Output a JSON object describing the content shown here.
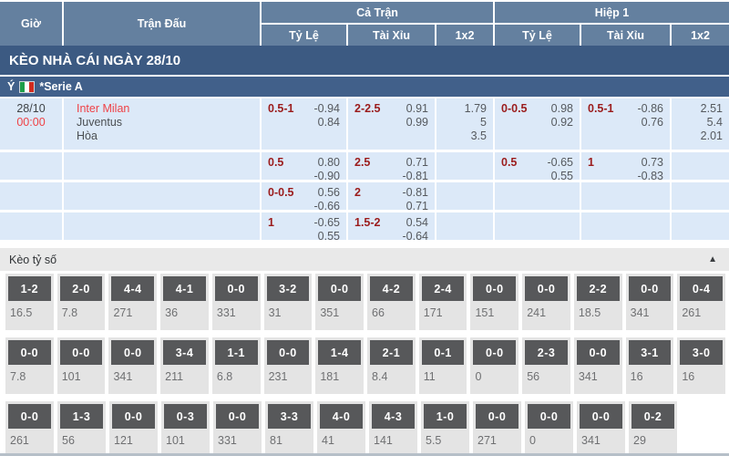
{
  "header": {
    "time": "Giờ",
    "match": "Trận Đấu",
    "full_time": "Cả Trận",
    "first_half": "Hiệp 1",
    "handicap": "Tỷ Lệ",
    "over_under": "Tài Xỉu",
    "one_x_two": "1x2"
  },
  "banner": {
    "title": "KÈO NHÀ CÁI NGÀY 28/10"
  },
  "league": {
    "country": "Ý",
    "flag": "italy-flag",
    "name": "*Serie A"
  },
  "match": {
    "date": "28/10",
    "time": "00:00",
    "home": "Inter Milan",
    "away": "Juventus",
    "draw": "Hòa"
  },
  "odds_rows": [
    {
      "ft_hdp_line": "0.5-1",
      "ft_hdp_top": "-0.94",
      "ft_hdp_bot": "0.84",
      "ft_ou_line": "2-2.5",
      "ft_ou_top": "0.91",
      "ft_ou_bot": "0.99",
      "ft_1": "1.79",
      "ft_x": "5",
      "ft_2": "3.5",
      "h1_hdp_line": "0-0.5",
      "h1_hdp_top": "0.98",
      "h1_hdp_bot": "0.92",
      "h1_ou_line": "0.5-1",
      "h1_ou_top": "-0.86",
      "h1_ou_bot": "0.76",
      "h1_1": "2.51",
      "h1_x": "5.4",
      "h1_2": "2.01"
    },
    {
      "ft_hdp_line": "0.5",
      "ft_hdp_top": "0.80",
      "ft_hdp_bot": "-0.90",
      "ft_ou_line": "2.5",
      "ft_ou_top": "0.71",
      "ft_ou_bot": "-0.81",
      "h1_hdp_line": "0.5",
      "h1_hdp_top": "-0.65",
      "h1_hdp_bot": "0.55",
      "h1_ou_line": "1",
      "h1_ou_top": "0.73",
      "h1_ou_bot": "-0.83"
    },
    {
      "ft_hdp_line": "0-0.5",
      "ft_hdp_top": "0.56",
      "ft_hdp_bot": "-0.66",
      "ft_ou_line": "2",
      "ft_ou_top": "-0.81",
      "ft_ou_bot": "0.71"
    },
    {
      "ft_hdp_line": "1",
      "ft_hdp_top": "-0.65",
      "ft_hdp_bot": "0.55",
      "ft_ou_line": "1.5-2",
      "ft_ou_top": "0.54",
      "ft_ou_bot": "-0.64"
    }
  ],
  "score_section": {
    "title": "Kèo tỷ số",
    "collapse_icon": "▲",
    "rows": [
      [
        {
          "score": "1-2",
          "odds": "16.5"
        },
        {
          "score": "2-0",
          "odds": "7.8"
        },
        {
          "score": "4-4",
          "odds": "271"
        },
        {
          "score": "4-1",
          "odds": "36"
        },
        {
          "score": "0-0",
          "odds": "331"
        },
        {
          "score": "3-2",
          "odds": "31"
        },
        {
          "score": "0-0",
          "odds": "351"
        },
        {
          "score": "4-2",
          "odds": "66"
        },
        {
          "score": "2-4",
          "odds": "171"
        },
        {
          "score": "0-0",
          "odds": "151"
        },
        {
          "score": "0-0",
          "odds": "241"
        },
        {
          "score": "2-2",
          "odds": "18.5"
        },
        {
          "score": "0-0",
          "odds": "341"
        },
        {
          "score": "0-4",
          "odds": "261"
        }
      ],
      [
        {
          "score": "0-0",
          "odds": "7.8"
        },
        {
          "score": "0-0",
          "odds": "101"
        },
        {
          "score": "0-0",
          "odds": "341"
        },
        {
          "score": "3-4",
          "odds": "211"
        },
        {
          "score": "1-1",
          "odds": "6.8"
        },
        {
          "score": "0-0",
          "odds": "231"
        },
        {
          "score": "1-4",
          "odds": "181"
        },
        {
          "score": "2-1",
          "odds": "8.4"
        },
        {
          "score": "0-1",
          "odds": "11"
        },
        {
          "score": "0-0",
          "odds": "0"
        },
        {
          "score": "2-3",
          "odds": "56"
        },
        {
          "score": "0-0",
          "odds": "341"
        },
        {
          "score": "3-1",
          "odds": "16"
        },
        {
          "score": "3-0",
          "odds": "16"
        }
      ],
      [
        {
          "score": "0-0",
          "odds": "261"
        },
        {
          "score": "1-3",
          "odds": "56"
        },
        {
          "score": "0-0",
          "odds": "121"
        },
        {
          "score": "0-3",
          "odds": "101"
        },
        {
          "score": "0-0",
          "odds": "331"
        },
        {
          "score": "3-3",
          "odds": "81"
        },
        {
          "score": "4-0",
          "odds": "41"
        },
        {
          "score": "4-3",
          "odds": "141"
        },
        {
          "score": "1-0",
          "odds": "5.5"
        },
        {
          "score": "0-0",
          "odds": "271"
        },
        {
          "score": "0-0",
          "odds": "0"
        },
        {
          "score": "0-0",
          "odds": "341"
        },
        {
          "score": "0-2",
          "odds": "29"
        }
      ]
    ],
    "partial_row_cells": 13
  },
  "colors": {
    "header_blue": "#64809f",
    "banner_blue": "#3c5a82",
    "league_blue": "#41608a",
    "row_light_blue": "#dce9f8",
    "handicap_red": "#9b1c1c",
    "team_red": "#ef4146",
    "score_box_gray": "#57585a",
    "cell_gray": "#e4e4e4"
  }
}
